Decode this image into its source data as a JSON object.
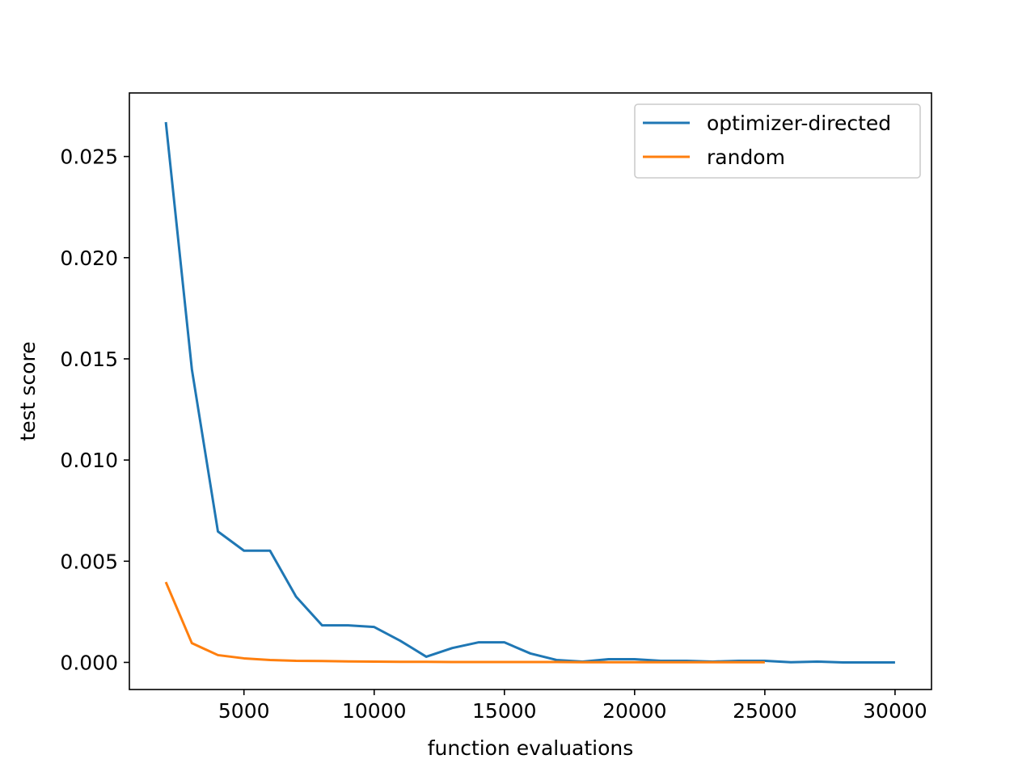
{
  "chart_data": {
    "type": "line",
    "xlabel": "function evaluations",
    "ylabel": "test score",
    "x": [
      2000,
      3000,
      4000,
      5000,
      6000,
      7000,
      8000,
      9000,
      10000,
      11000,
      12000,
      13000,
      14000,
      15000,
      16000,
      17000,
      18000,
      19000,
      20000,
      21000,
      22000,
      23000,
      24000,
      25000,
      26000,
      27000,
      28000,
      29000,
      30000
    ],
    "series": [
      {
        "name": "optimizer-directed",
        "color": "#1f77b4",
        "values": [
          0.0267,
          0.01448,
          0.00647,
          0.00552,
          0.00552,
          0.00325,
          0.00183,
          0.00183,
          0.00175,
          0.00107,
          0.00028,
          0.00071,
          0.00099,
          0.00099,
          0.00044,
          0.00012,
          4e-05,
          0.00016,
          0.00016,
          8e-05,
          8e-05,
          4e-05,
          8e-05,
          8e-05,
          1e-05,
          4e-05,
          0,
          0,
          0
        ]
      },
      {
        "name": "random",
        "color": "#ff7f0e",
        "values": [
          0.00397,
          0.00095,
          0.00036,
          0.0002,
          0.00012,
          8e-05,
          7e-05,
          5e-05,
          4e-05,
          3e-05,
          3e-05,
          2e-05,
          2e-05,
          2e-05,
          2e-05,
          2e-05,
          1e-05,
          1e-05,
          1e-05,
          1e-05,
          1e-05,
          1e-05,
          1e-05,
          1e-05,
          null,
          null,
          null,
          null,
          null
        ]
      }
    ],
    "xlim": [
      600,
      31400
    ],
    "ylim": [
      -0.00134,
      0.02814
    ],
    "xticks": [
      5000,
      10000,
      15000,
      20000,
      25000,
      30000
    ],
    "yticks": [
      {
        "value": 0,
        "label": "0.000"
      },
      0.005,
      {
        "value": 0.01,
        "label": "0.010"
      },
      0.015,
      {
        "value": 0.02,
        "label": "0.020"
      },
      0.025
    ],
    "legend": "upper right"
  }
}
